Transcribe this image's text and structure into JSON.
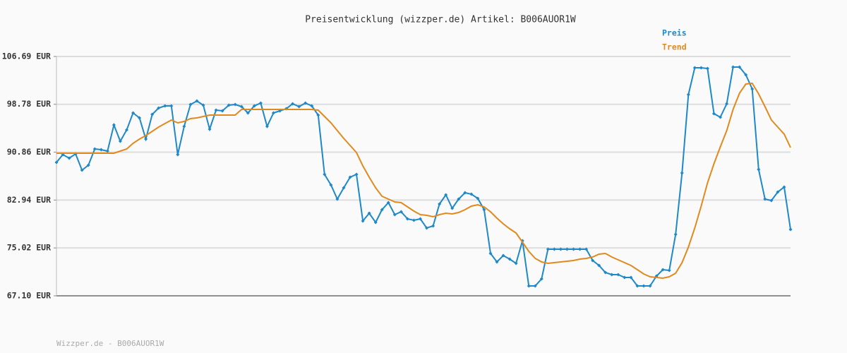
{
  "chart_data": {
    "type": "line",
    "title": "Preisentwicklung (wizzper.de) Artikel: B006AUOR1W",
    "footer": "Wizzper.de - B006AUOR1W",
    "ylim": [
      67.1,
      106.69
    ],
    "yticks": [
      {
        "value": 67.1,
        "label": "67.10 EUR"
      },
      {
        "value": 75.02,
        "label": "75.02 EUR"
      },
      {
        "value": 82.94,
        "label": "82.94 EUR"
      },
      {
        "value": 90.86,
        "label": "90.86 EUR"
      },
      {
        "value": 98.78,
        "label": "98.78 EUR"
      },
      {
        "value": 106.69,
        "label": "106.69 EUR"
      }
    ],
    "grid": true,
    "legend": "top-right",
    "series": [
      {
        "name": "Preis",
        "color": "#1e88c8",
        "markers": true,
        "values": [
          89.17,
          90.46,
          89.87,
          90.57,
          87.89,
          88.7,
          91.39,
          91.27,
          91.04,
          95.36,
          92.68,
          94.54,
          97.35,
          96.53,
          93.03,
          97.11,
          98.16,
          98.51,
          98.51,
          90.46,
          95.13,
          98.75,
          99.33,
          98.63,
          94.66,
          97.81,
          97.7,
          98.63,
          98.75,
          98.4,
          97.35,
          98.51,
          98.98,
          95.13,
          97.35,
          97.7,
          98.05,
          98.86,
          98.4,
          98.98,
          98.51,
          97.0,
          87.19,
          85.43,
          83.1,
          84.97,
          86.72,
          87.19,
          79.48,
          80.76,
          79.25,
          81.35,
          82.52,
          80.53,
          81.0,
          79.83,
          79.6,
          79.83,
          78.31,
          78.66,
          82.28,
          83.8,
          81.58,
          83.1,
          84.15,
          83.92,
          83.22,
          81.35,
          74.11,
          72.71,
          73.76,
          73.17,
          72.47,
          76.21,
          68.73,
          68.73,
          69.9,
          74.81,
          74.81,
          74.81,
          74.81,
          74.81,
          74.81,
          74.81,
          72.94,
          72.12,
          70.95,
          70.6,
          70.6,
          70.14,
          70.14,
          68.73,
          68.73,
          68.73,
          70.37,
          71.42,
          71.3,
          77.26,
          87.42,
          100.38,
          104.82,
          104.82,
          104.7,
          97.23,
          96.65,
          98.86,
          104.94,
          104.94,
          103.65,
          101.32,
          88.0,
          83.1,
          82.87,
          84.27,
          85.08,
          78.08
        ]
      },
      {
        "name": "Trend",
        "color": "#e08a1e",
        "markers": false,
        "values": [
          90.69,
          90.69,
          90.69,
          90.69,
          90.69,
          90.69,
          90.69,
          90.69,
          90.69,
          90.69,
          91.04,
          91.39,
          92.33,
          93.03,
          93.61,
          94.31,
          95.01,
          95.6,
          96.18,
          95.71,
          95.95,
          96.41,
          96.53,
          96.76,
          97.0,
          97.0,
          97.0,
          97.0,
          97.0,
          97.93,
          97.93,
          97.93,
          97.93,
          97.93,
          97.93,
          97.93,
          97.93,
          97.93,
          97.93,
          97.93,
          97.93,
          97.81,
          96.76,
          95.71,
          94.43,
          93.14,
          91.97,
          90.81,
          88.59,
          86.72,
          84.97,
          83.57,
          83.1,
          82.63,
          82.52,
          81.81,
          81.11,
          80.53,
          80.41,
          80.18,
          80.53,
          80.76,
          80.65,
          80.88,
          81.35,
          81.93,
          82.17,
          81.81,
          81.0,
          79.95,
          79.01,
          78.19,
          77.49,
          75.97,
          74.46,
          73.29,
          72.71,
          72.47,
          72.59,
          72.71,
          72.82,
          72.94,
          73.17,
          73.29,
          73.52,
          73.99,
          74.11,
          73.52,
          73.06,
          72.59,
          72.12,
          71.42,
          70.72,
          70.25,
          70.14,
          70.02,
          70.25,
          70.84,
          72.59,
          75.16,
          78.31,
          81.93,
          85.78,
          88.94,
          91.74,
          94.43,
          97.93,
          100.62,
          102.13,
          102.25,
          100.5,
          98.4,
          96.18,
          95.01,
          93.84,
          91.62
        ]
      }
    ]
  }
}
